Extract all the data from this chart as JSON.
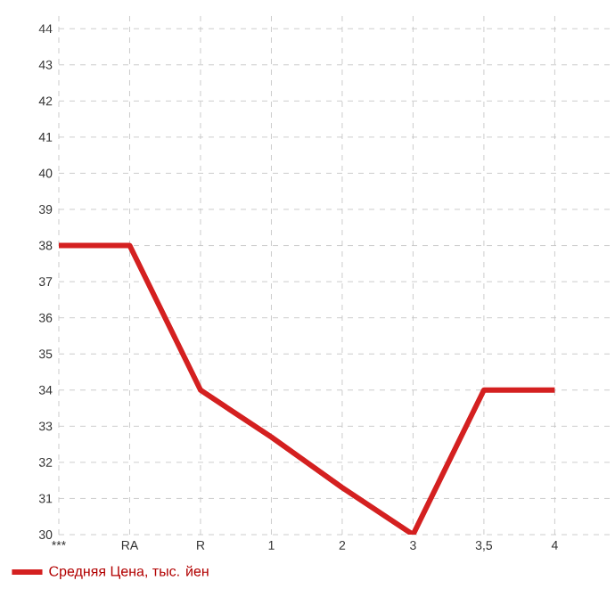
{
  "chart_data": {
    "type": "line",
    "categories": [
      "***",
      "RA",
      "R",
      "1",
      "2",
      "3",
      "3,5",
      "4"
    ],
    "series": [
      {
        "name": "Средняя Цена, тыс. йен",
        "color": "#d42020",
        "values": [
          38,
          38,
          34,
          32.7,
          31.3,
          30,
          34,
          34
        ]
      }
    ],
    "ylim": [
      30,
      44.4
    ],
    "yticks": [
      30,
      31,
      32,
      33,
      34,
      35,
      36,
      37,
      38,
      39,
      40,
      41,
      42,
      43,
      44
    ],
    "grid": true,
    "legend": "bottom left"
  }
}
